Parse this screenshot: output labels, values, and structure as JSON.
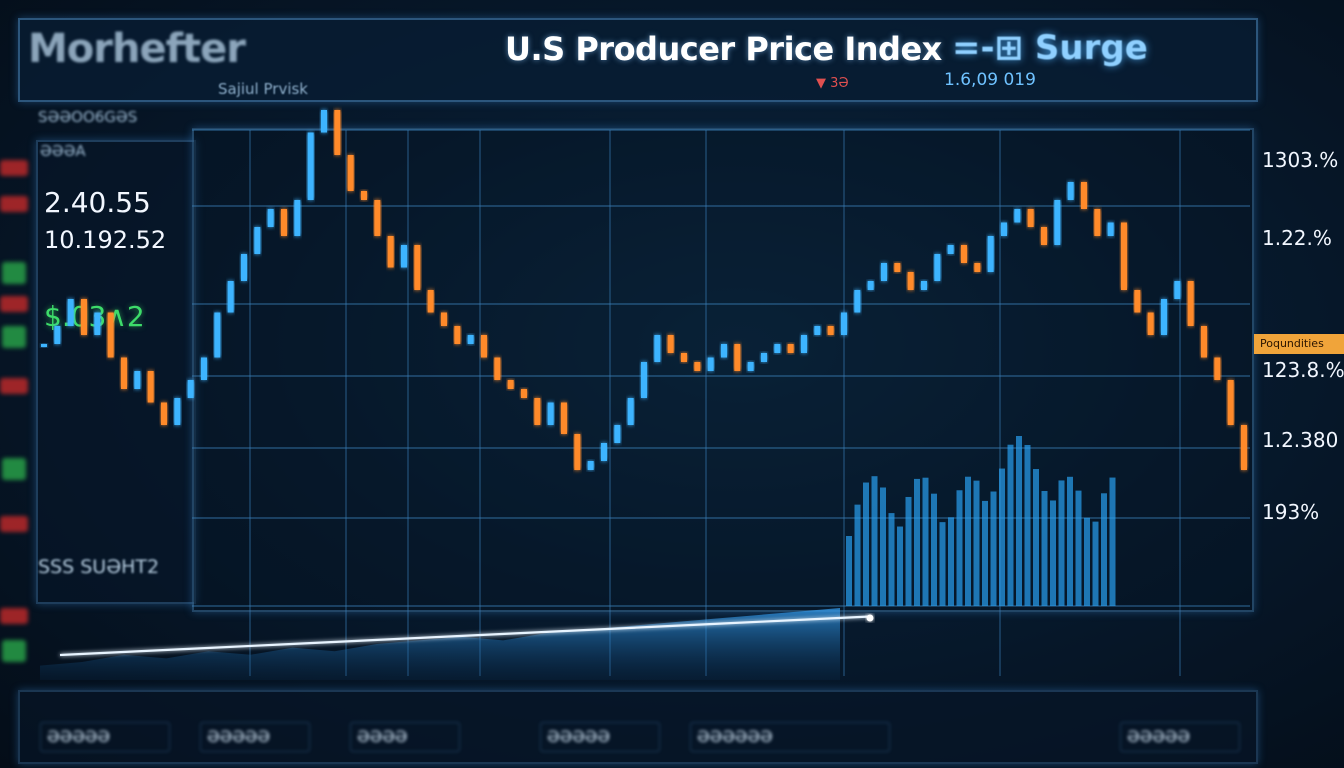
{
  "header": {
    "brand": "Morhefter",
    "brand_sub": "Sajiul Prvisk",
    "title": "U.S Producer Price Index",
    "title_accent": "=-⊞ Surge",
    "mid_label": "▼ 3Ə",
    "mid_number": "1.6,09 019"
  },
  "left_panel": {
    "top_label": "SƏƏOO6GƏS",
    "top_label_2": "ƏƏƏA",
    "value_1": "2.40.55",
    "value_2": "10.192.52",
    "value_3": "$.03∧2",
    "footer_label": "SSS SUƏHT2"
  },
  "right_axis": {
    "labels": [
      "1303.%",
      "1.22.%",
      "123.8.%",
      "1.2.380",
      "193%"
    ],
    "badge": "Poqundities"
  },
  "footer": {
    "cells": [
      "ƏƏƏƏƏ",
      "ƏƏƏƏƏ",
      "ƏƏƏƏ",
      "ƏƏƏƏƏ",
      "ƏƏƏƏƏƏ",
      "ƏƏƏƏƏ"
    ]
  },
  "colors": {
    "up": "#3cb4ff",
    "down": "#ff8a2a",
    "line": "#e8f4ff",
    "area": "#1e8fe0",
    "grid": "#3a7fb8"
  },
  "chart_data": {
    "type": "line",
    "title": "U.S Producer Price Index",
    "series": [
      {
        "values": [
          0.48,
          0.52,
          0.58,
          0.5,
          0.55,
          0.45,
          0.38,
          0.42,
          0.35,
          0.3,
          0.36,
          0.4,
          0.45,
          0.55,
          0.62,
          0.68,
          0.74,
          0.78,
          0.72,
          0.8,
          0.95,
          1.0,
          0.9,
          0.82,
          0.8,
          0.72,
          0.65,
          0.7,
          0.6,
          0.55,
          0.52,
          0.48,
          0.5,
          0.45,
          0.4,
          0.38,
          0.36,
          0.3,
          0.35,
          0.28,
          0.2,
          0.22,
          0.26,
          0.3,
          0.36,
          0.44,
          0.5,
          0.46,
          0.44,
          0.42,
          0.45,
          0.48,
          0.42,
          0.44,
          0.46,
          0.48,
          0.46,
          0.5,
          0.52,
          0.5,
          0.55,
          0.6,
          0.62,
          0.66,
          0.64,
          0.6,
          0.62,
          0.68,
          0.7,
          0.66,
          0.64,
          0.72,
          0.75,
          0.78,
          0.74,
          0.7,
          0.8,
          0.84,
          0.78,
          0.72,
          0.75,
          0.6,
          0.55,
          0.5,
          0.58,
          0.62,
          0.52,
          0.45,
          0.4,
          0.3,
          0.2
        ]
      },
      {
        "values": [
          0.04,
          0.05,
          0.07,
          0.06,
          0.08,
          0.07,
          0.09,
          0.08,
          0.1,
          0.11,
          0.12,
          0.11,
          0.13,
          0.14,
          0.15,
          0.16,
          0.17,
          0.18,
          0.19,
          0.2
        ]
      },
      {
        "values": [
          0.1,
          0.11,
          0.12,
          0.13,
          0.14,
          0.15,
          0.16,
          0.17,
          0.18,
          0.19,
          0.2,
          0.21
        ]
      }
    ]
  }
}
